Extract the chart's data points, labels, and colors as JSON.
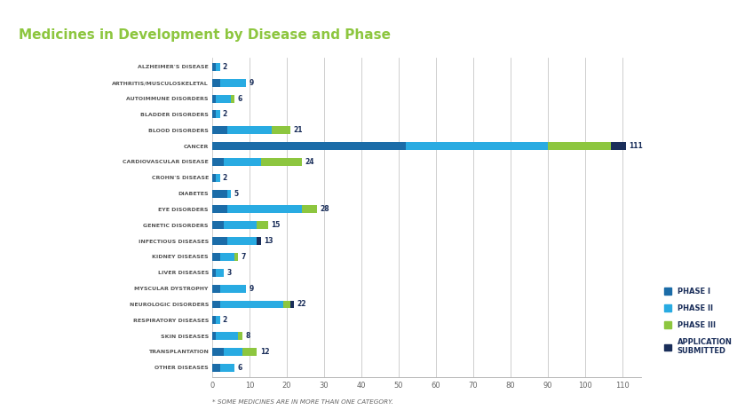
{
  "title": "Medicines in Development by Disease and Phase",
  "subtitle": "* SOME MEDICINES ARE IN MORE THAN ONE CATEGORY.",
  "categories": [
    "ALZHEIMER'S DISEASE",
    "ARTHRITIS/MUSCULOSKELETAL",
    "AUTOIMMUNE DISORDERS",
    "BLADDER DISORDERS",
    "BLOOD DISORDERS",
    "CANCER",
    "CARDIOVASCULAR DISEASE",
    "CROHN'S DISEASE",
    "DIABETES",
    "EYE DISORDERS",
    "GENETIC DISORDERS",
    "INFECTIOUS DISEASES",
    "KIDNEY DISEASES",
    "LIVER DISEASES",
    "MYSCULAR DYSTROPHY",
    "NEUROLOGIC DISORDERS",
    "RESPIRATORY DISEASES",
    "SKIN DISEASES",
    "TRANSPLANTATION",
    "OTHER DISEASES"
  ],
  "phase1": [
    1,
    2,
    1,
    1,
    4,
    52,
    3,
    1,
    4,
    4,
    3,
    4,
    2,
    1,
    2,
    2,
    1,
    1,
    3,
    2
  ],
  "phase2": [
    1,
    7,
    4,
    1,
    12,
    38,
    10,
    1,
    1,
    20,
    9,
    8,
    4,
    2,
    7,
    17,
    1,
    6,
    5,
    4
  ],
  "phase3": [
    0,
    0,
    1,
    0,
    5,
    17,
    11,
    0,
    0,
    4,
    3,
    0,
    1,
    0,
    0,
    2,
    0,
    1,
    4,
    0
  ],
  "app_submitted": [
    0,
    0,
    0,
    0,
    0,
    4,
    0,
    0,
    0,
    0,
    0,
    1,
    0,
    0,
    0,
    1,
    0,
    0,
    0,
    0
  ],
  "totals": [
    2,
    9,
    6,
    2,
    21,
    111,
    24,
    2,
    5,
    28,
    15,
    13,
    7,
    3,
    9,
    22,
    2,
    8,
    12,
    6
  ],
  "color_phase1": "#1b6ca8",
  "color_phase2": "#29abe2",
  "color_phase3": "#8dc63f",
  "color_app": "#1a2e5a",
  "title_color": "#8dc63f",
  "xlim": [
    0,
    115
  ],
  "xticks": [
    0,
    10,
    20,
    30,
    40,
    50,
    60,
    70,
    80,
    90,
    100,
    110
  ],
  "background_color": "#ffffff"
}
